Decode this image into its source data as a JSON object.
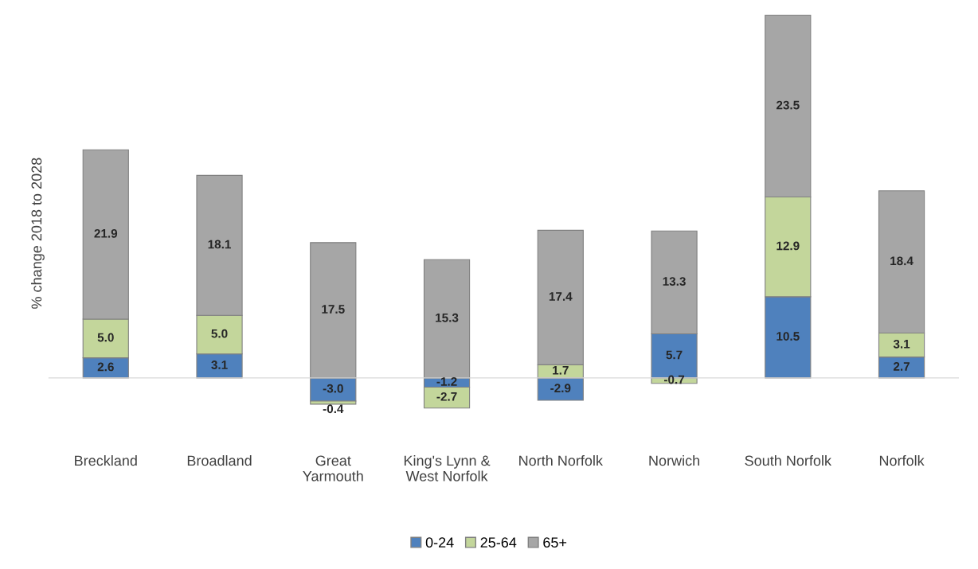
{
  "chart_data": {
    "type": "bar",
    "stacked": true,
    "legend": "bottom",
    "grid": false,
    "ylabel": "% change 2018 to 2028",
    "categories": [
      "Breckland",
      "Broadland",
      "Great\nYarmouth",
      "King's Lynn &\nWest Norfolk",
      "North Norfolk",
      "Norwich",
      "South Norfolk",
      "Norfolk"
    ],
    "series": [
      {
        "name": "0-24",
        "color": "#4f81bd",
        "values": [
          2.6,
          3.1,
          -3.0,
          -1.2,
          -2.9,
          5.7,
          10.5,
          2.7
        ],
        "value_labels": [
          "2.6",
          "3.1",
          "-3.0",
          "-1.2",
          "-2.9",
          "5.7",
          "10.5",
          "2.7"
        ]
      },
      {
        "name": "25-64",
        "color": "#c3d69b",
        "values": [
          5.0,
          5.0,
          -0.4,
          -2.7,
          1.7,
          -0.7,
          12.9,
          3.1
        ],
        "value_labels": [
          "5.0",
          "5.0",
          "-0.4",
          "-2.7",
          "1.7",
          "-0.7",
          "12.9",
          "3.1"
        ]
      },
      {
        "name": "65+",
        "color": "#a6a6a6",
        "values": [
          21.9,
          18.1,
          17.5,
          15.3,
          17.4,
          13.3,
          23.5,
          18.4
        ],
        "value_labels": [
          "21.9",
          "18.1",
          "17.5",
          "15.3",
          "17.4",
          "13.3",
          "23.5",
          "18.4"
        ]
      }
    ]
  }
}
